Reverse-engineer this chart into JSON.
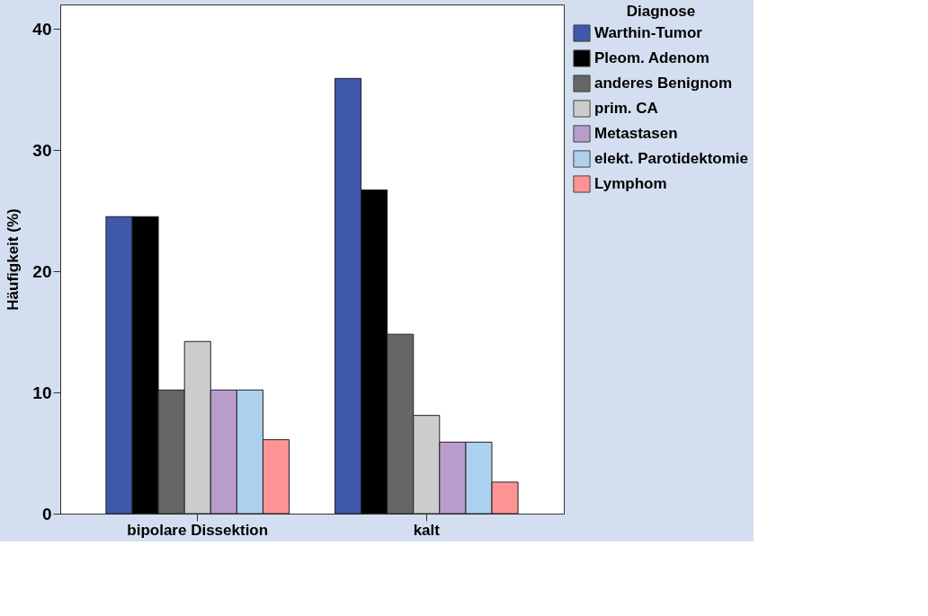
{
  "chart_data": {
    "type": "bar",
    "ylabel": "Häufigkeit (%)",
    "legend_title": "Diagnose",
    "legend": "right",
    "categories": [
      "bipolare Dissektion",
      "kalt"
    ],
    "ylim": [
      0,
      42
    ],
    "yticks": [
      0,
      10,
      20,
      30,
      40
    ],
    "grid": false,
    "series": [
      {
        "name": "Warthin-Tumor",
        "color": "#3f58a9",
        "values": [
          24.5,
          35.9
        ]
      },
      {
        "name": "Pleom. Adenom",
        "color": "#000000",
        "values": [
          24.5,
          26.7
        ]
      },
      {
        "name": "anderes Benignom",
        "color": "#666666",
        "values": [
          10.2,
          14.8
        ]
      },
      {
        "name": "prim. CA",
        "color": "#cccccc",
        "values": [
          14.2,
          8.1
        ]
      },
      {
        "name": "Metastasen",
        "color": "#b89ccb",
        "values": [
          10.2,
          5.9
        ]
      },
      {
        "name": "elekt. Parotidektomie",
        "color": "#acd0ee",
        "values": [
          10.2,
          5.9
        ]
      },
      {
        "name": "Lymphom",
        "color": "#fd9494",
        "values": [
          6.1,
          2.6
        ]
      }
    ]
  }
}
